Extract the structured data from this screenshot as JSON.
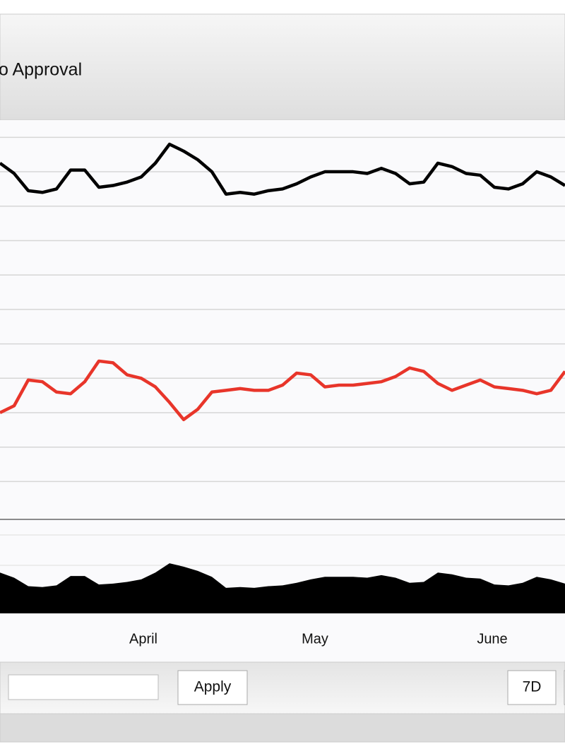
{
  "header": {
    "title": "o Approval"
  },
  "chart_data": {
    "type": "line",
    "xlim": [
      0,
      40
    ],
    "xticks": [
      {
        "value": 10.15,
        "label": "April"
      },
      {
        "value": 22.3,
        "label": "May"
      },
      {
        "value": 34.85,
        "label": "June"
      }
    ],
    "ylim": [
      33.8,
      57
    ],
    "yticks": [
      36,
      38,
      40,
      42,
      44,
      46,
      48,
      50,
      52,
      54,
      56
    ],
    "grid": true,
    "navigator_ylim": [
      49.7,
      59.1
    ],
    "series": [
      {
        "color": "#000000",
        "values": [
          54.5,
          53.9,
          52.9,
          52.8,
          53.0,
          54.1,
          54.1,
          53.1,
          53.2,
          53.4,
          53.7,
          54.5,
          55.6,
          55.2,
          54.7,
          54.0,
          52.7,
          52.8,
          52.7,
          52.9,
          53.0,
          53.3,
          53.7,
          54.0,
          54.0,
          54.0,
          53.9,
          54.2,
          53.9,
          53.3,
          53.4,
          54.5,
          54.3,
          53.9,
          53.8,
          53.1,
          53.0,
          53.3,
          54.0,
          53.7,
          53.2
        ]
      },
      {
        "color": "#e8352a",
        "values": [
          40.0,
          40.4,
          41.9,
          41.8,
          41.2,
          41.1,
          41.8,
          43.0,
          42.9,
          42.2,
          42.0,
          41.5,
          40.6,
          39.6,
          40.2,
          41.2,
          41.3,
          41.4,
          41.3,
          41.3,
          41.6,
          42.3,
          42.2,
          41.5,
          41.6,
          41.6,
          41.7,
          41.8,
          42.1,
          42.6,
          42.4,
          41.7,
          41.3,
          41.6,
          41.9,
          41.5,
          41.4,
          41.3,
          41.1,
          41.3,
          42.4
        ]
      }
    ]
  },
  "toolbar": {
    "apply": "Apply",
    "range_buttons": [
      "7D"
    ]
  }
}
